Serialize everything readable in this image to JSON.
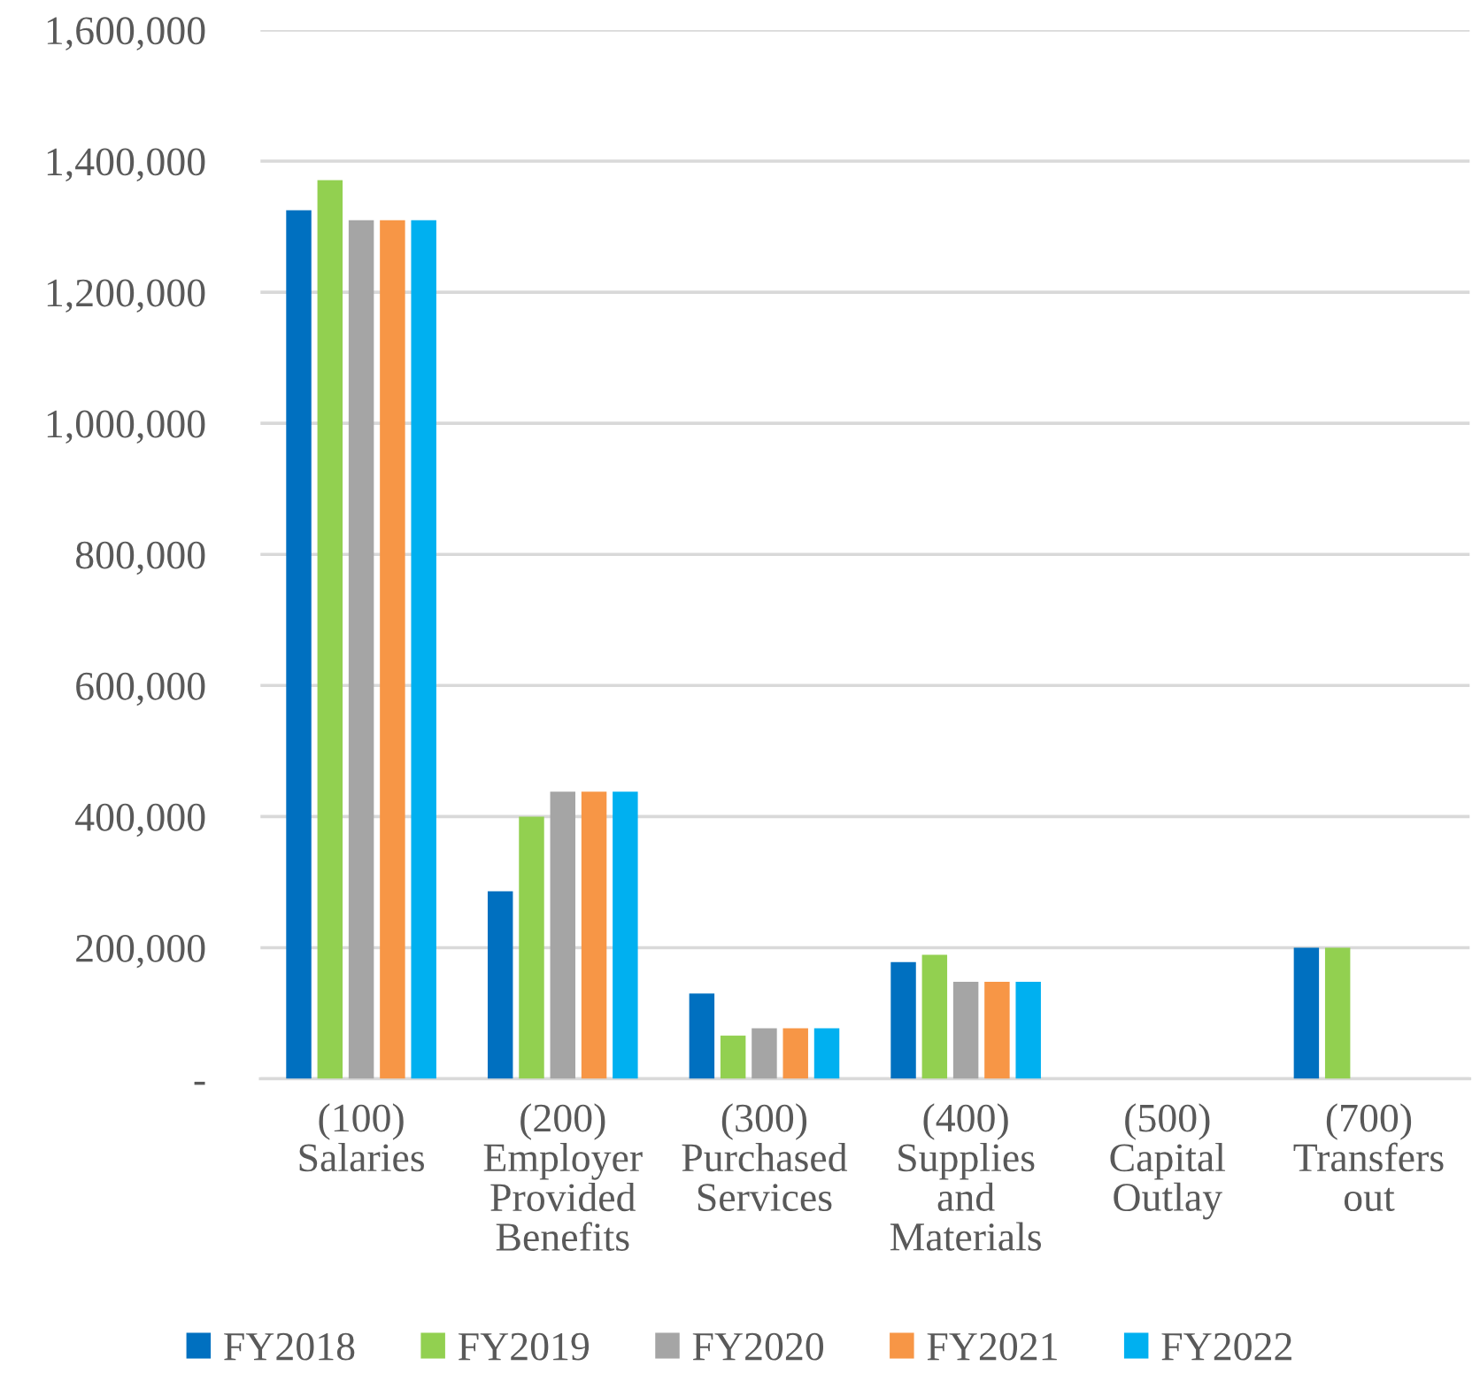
{
  "chart_data": {
    "type": "bar",
    "categories": [
      "(100)\nSalaries",
      "(200)\nEmployer\nProvided\nBenefits",
      "(300)\nPurchased\nServices",
      "(400)\nSupplies\nand\nMaterials",
      "(500)\nCapital\nOutlay",
      "(700)\nTransfers\nout"
    ],
    "series": [
      {
        "name": "FY2018",
        "color": "#0070c0",
        "values": [
          1325000,
          286000,
          130000,
          178000,
          null,
          200000
        ]
      },
      {
        "name": "FY2019",
        "color": "#92d050",
        "values": [
          1371000,
          400000,
          66000,
          189000,
          null,
          200000
        ]
      },
      {
        "name": "FY2020",
        "color": "#a5a5a5",
        "values": [
          1310000,
          438000,
          77000,
          148000,
          null,
          null
        ]
      },
      {
        "name": "FY2021",
        "color": "#f79646",
        "values": [
          1310000,
          438000,
          77000,
          148000,
          null,
          null
        ]
      },
      {
        "name": "FY2022",
        "color": "#00b0f0",
        "values": [
          1310000,
          438000,
          77000,
          148000,
          null,
          null
        ]
      }
    ],
    "ylim": [
      0,
      1600000
    ],
    "yticks": [
      {
        "value": 0,
        "label": "-"
      },
      {
        "value": 200000,
        "label": "200,000"
      },
      {
        "value": 400000,
        "label": "400,000"
      },
      {
        "value": 600000,
        "label": "600,000"
      },
      {
        "value": 800000,
        "label": "800,000"
      },
      {
        "value": 1000000,
        "label": "1,000,000"
      },
      {
        "value": 1200000,
        "label": "1,200,000"
      },
      {
        "value": 1400000,
        "label": "1,400,000"
      },
      {
        "value": 1600000,
        "label": "1,600,000"
      }
    ],
    "grid": "y",
    "legend": "bottom"
  }
}
